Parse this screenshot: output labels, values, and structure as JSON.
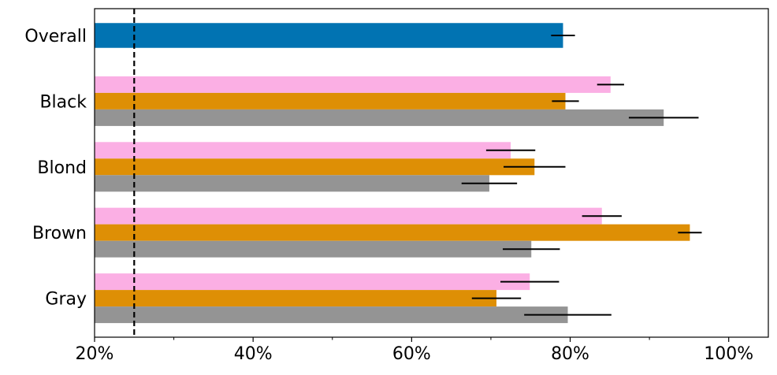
{
  "chart_data": {
    "type": "bar",
    "orientation": "horizontal",
    "categories": [
      "Overall",
      "Black",
      "Blond",
      "Brown",
      "Gray"
    ],
    "series": [
      {
        "color": "#0173b2",
        "values": [
          79.1,
          null,
          null,
          null,
          null
        ],
        "errors": [
          1.5,
          null,
          null,
          null,
          null
        ]
      },
      {
        "color": "#fbafe4",
        "values": [
          null,
          85.1,
          72.5,
          84.0,
          74.9
        ],
        "errors": [
          null,
          1.7,
          3.1,
          2.5,
          3.7
        ]
      },
      {
        "color": "#de8f05",
        "values": [
          null,
          79.4,
          75.5,
          95.1,
          70.7
        ],
        "errors": [
          null,
          1.7,
          3.9,
          1.5,
          3.1
        ]
      },
      {
        "color": "#949494",
        "values": [
          null,
          91.8,
          69.8,
          75.1,
          79.7
        ],
        "errors": [
          null,
          4.4,
          3.5,
          3.6,
          5.5
        ]
      }
    ],
    "xlim": [
      20,
      105
    ],
    "xticks": [
      {
        "value": 20,
        "label": "20%"
      },
      {
        "value": 40,
        "label": "40%"
      },
      {
        "value": 60,
        "label": "60%"
      },
      {
        "value": 80,
        "label": "80%"
      },
      {
        "value": 100,
        "label": "100%"
      }
    ],
    "xminor_ticks": [
      30,
      50,
      70,
      90
    ],
    "reference_line": {
      "value": 25,
      "style": "dashed",
      "color": "#000000"
    },
    "grid": false
  }
}
